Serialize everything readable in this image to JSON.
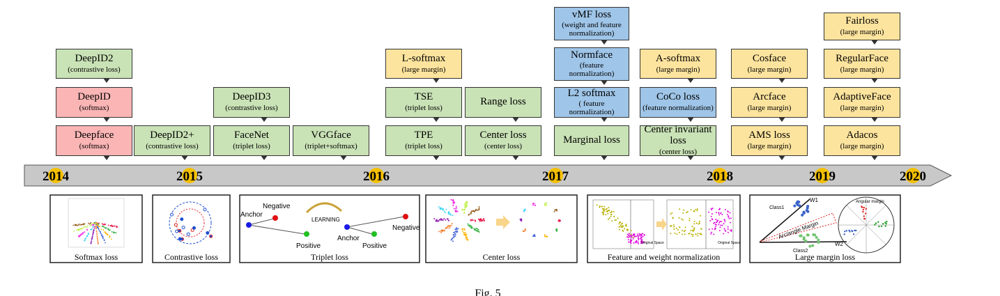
{
  "boxes": [
    {
      "title": "DeepID2",
      "subtitle": "(contrastive loss)"
    },
    {
      "title": "DeepID",
      "subtitle": "(softmax)"
    },
    {
      "title": "Deepface",
      "subtitle": "(softmax)"
    },
    {
      "title": "DeepID2+",
      "subtitle": "(contrastive loss)"
    },
    {
      "title": "DeepID3",
      "subtitle": "(contrastive loss)"
    },
    {
      "title": "FaceNet",
      "subtitle": "(triplet loss)"
    },
    {
      "title": "VGGface",
      "subtitle": "(triplet+softmax)"
    },
    {
      "title": "L-softmax",
      "subtitle": "(large margin)"
    },
    {
      "title": "TSE",
      "subtitle": "(triplet loss)"
    },
    {
      "title": "TPE",
      "subtitle": "(triplet loss)"
    },
    {
      "title": "Range loss"
    },
    {
      "title": "Center loss",
      "subtitle": "(center loss)"
    },
    {
      "title": "vMF loss",
      "subtitle": "(weight and feature normalization)"
    },
    {
      "title": "Normface",
      "subtitle": "(feature normalization)"
    },
    {
      "title": "L2 softmax",
      "subtitle": "( feature normalization)"
    },
    {
      "title": "Marginal loss"
    },
    {
      "title": "A-softmax",
      "subtitle": "(large margin)"
    },
    {
      "title": "CoCo loss",
      "subtitle": "(feature normalization)"
    },
    {
      "title": "Center invariant loss",
      "subtitle": "(center loss)"
    },
    {
      "title": "Cosface",
      "subtitle": "(large margin)"
    },
    {
      "title": "Arcface",
      "subtitle": "(large margin)"
    },
    {
      "title": "AMS loss",
      "subtitle": "(large margin)"
    },
    {
      "title": "Fairloss",
      "subtitle": "(large margin)"
    },
    {
      "title": "RegularFace",
      "subtitle": "(large margin)"
    },
    {
      "title": "AdaptiveFace",
      "subtitle": "(large margin)"
    },
    {
      "title": "Adacos",
      "subtitle": "(large margin)"
    }
  ],
  "years": [
    "2014",
    "2015",
    "2016",
    "2017",
    "2018",
    "2019",
    "2020"
  ],
  "panels": [
    {
      "caption": "Softmax loss"
    },
    {
      "caption": "Contrastive loss"
    },
    {
      "caption": "Triplet loss",
      "labels": [
        "Anchor",
        "Negative",
        "LEARNING",
        "Positive",
        "Anchor",
        "Negative",
        "Positive"
      ]
    },
    {
      "caption": "Center loss"
    },
    {
      "caption": "Feature and weight normalization",
      "labels": [
        "Original Space",
        "Original Space"
      ]
    },
    {
      "caption": "Large margin loss",
      "labels": [
        "Class1",
        "W1",
        "Arc/angle Margin",
        "W2",
        "Class2",
        "Angular margin"
      ]
    }
  ],
  "caption": "Fig. 5"
}
